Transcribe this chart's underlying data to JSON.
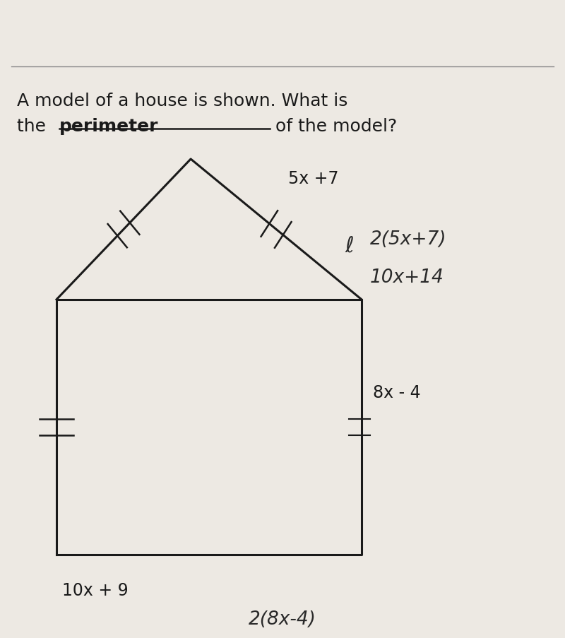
{
  "background_color": "#ede9e3",
  "question_text_line1": "A model of a house is shown. What is",
  "question_text_line2_normal": "the ",
  "question_text_line2_underline": "perimeter",
  "question_text_line2_end": " of the model?",
  "label_roof": "5x +7",
  "label_side": "8x - 4",
  "label_bottom": "10x + 9",
  "handwritten_line1": "2(5x+7)",
  "handwritten_line2": "10x+14",
  "handwritten_prefix": "ℓ",
  "handwritten_bottom": "2(8x-4)",
  "text_color": "#1a1a1a",
  "handwritten_color": "#2a2a2a",
  "line_color": "#1a1a1a",
  "title_fontsize": 18,
  "label_fontsize": 17,
  "handwritten_fontsize": 19
}
